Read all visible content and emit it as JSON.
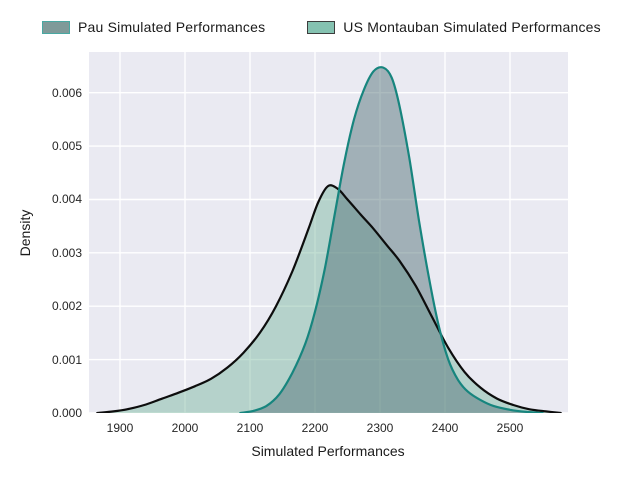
{
  "figure": {
    "background": "#ffffff",
    "plot_background": "#eaeaf2",
    "grid_color": "#ffffff",
    "tick_color": "#262626",
    "text_color": "#1a1a1a"
  },
  "legend": {
    "position": "top",
    "items": [
      {
        "label": "Pau Simulated Performances",
        "swatch_fill": "#7f9a99",
        "swatch_border": "#48a8a2"
      },
      {
        "label": "US Montauban Simulated Performances",
        "swatch_fill": "#85c2b1",
        "swatch_border": "#3d3d3d"
      }
    ]
  },
  "chart_data": {
    "type": "area",
    "subtype": "kde-density",
    "title": "",
    "xlabel": "Simulated Performances",
    "ylabel": "Density",
    "xlim": [
      1852.3,
      2589.2
    ],
    "ylim": [
      0,
      0.006762
    ],
    "xticks": [
      1900,
      2000,
      2100,
      2200,
      2300,
      2400,
      2500
    ],
    "yticks": [
      0,
      0.001,
      0.002,
      0.003,
      0.004,
      0.005,
      0.006
    ],
    "ytick_labels": [
      "0.000",
      "0.001",
      "0.002",
      "0.003",
      "0.004",
      "0.005",
      "0.006"
    ],
    "grid": true,
    "legend_position": "top",
    "series": [
      {
        "name": "Pau Simulated Performances",
        "line_color": "#0d0d0d",
        "fill_color": "rgba(117,182,156,0.45)",
        "peak": {
          "x": 2220,
          "density": 0.00425
        },
        "points": [
          [
            1865,
            0.0
          ],
          [
            1890,
            3e-05
          ],
          [
            1915,
            8e-05
          ],
          [
            1940,
            0.00016
          ],
          [
            1965,
            0.00027
          ],
          [
            1990,
            0.00038
          ],
          [
            2015,
            0.0005
          ],
          [
            2040,
            0.00064
          ],
          [
            2065,
            0.00085
          ],
          [
            2090,
            0.00113
          ],
          [
            2115,
            0.0015
          ],
          [
            2140,
            0.002
          ],
          [
            2165,
            0.00265
          ],
          [
            2190,
            0.00345
          ],
          [
            2205,
            0.00395
          ],
          [
            2220,
            0.00425
          ],
          [
            2235,
            0.0042
          ],
          [
            2250,
            0.004
          ],
          [
            2270,
            0.00372
          ],
          [
            2290,
            0.00345
          ],
          [
            2310,
            0.00315
          ],
          [
            2330,
            0.00285
          ],
          [
            2355,
            0.00238
          ],
          [
            2380,
            0.0018
          ],
          [
            2405,
            0.00122
          ],
          [
            2430,
            0.00077
          ],
          [
            2455,
            0.00047
          ],
          [
            2480,
            0.00027
          ],
          [
            2505,
            0.00015
          ],
          [
            2530,
            7e-05
          ],
          [
            2555,
            3e-05
          ],
          [
            2578,
            0.0
          ]
        ]
      },
      {
        "name": "US Montauban Simulated Performances",
        "line_color": "#17857e",
        "fill_color": "rgba(82,113,119,0.48)",
        "peak": {
          "x": 2305,
          "density": 0.00647
        },
        "points": [
          [
            2085,
            0.0
          ],
          [
            2105,
            4e-05
          ],
          [
            2125,
            0.00013
          ],
          [
            2145,
            0.00035
          ],
          [
            2165,
            0.00075
          ],
          [
            2185,
            0.0013
          ],
          [
            2200,
            0.0019
          ],
          [
            2215,
            0.0027
          ],
          [
            2230,
            0.0037
          ],
          [
            2245,
            0.0047
          ],
          [
            2260,
            0.0055
          ],
          [
            2275,
            0.00605
          ],
          [
            2290,
            0.0064
          ],
          [
            2305,
            0.00647
          ],
          [
            2318,
            0.00628
          ],
          [
            2330,
            0.00575
          ],
          [
            2345,
            0.00478
          ],
          [
            2360,
            0.0036
          ],
          [
            2375,
            0.00255
          ],
          [
            2390,
            0.00165
          ],
          [
            2405,
            0.001
          ],
          [
            2420,
            0.00062
          ],
          [
            2435,
            0.0004
          ],
          [
            2455,
            0.00024
          ],
          [
            2475,
            0.00013
          ],
          [
            2500,
            6e-05
          ],
          [
            2525,
            2e-05
          ],
          [
            2550,
            0.0
          ]
        ]
      }
    ]
  }
}
